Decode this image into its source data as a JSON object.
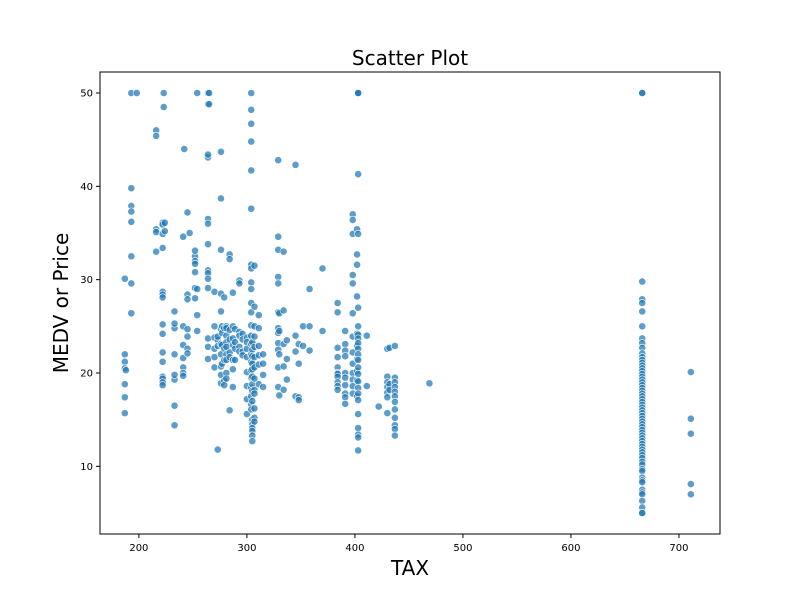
{
  "chart_data": {
    "type": "scatter",
    "title": "Scatter Plot",
    "xlabel": "TAX",
    "ylabel": "MEDV or Price",
    "xlim": [
      164,
      738
    ],
    "ylim": [
      2.75,
      52.25
    ],
    "x_ticks": [
      200,
      300,
      400,
      500,
      600,
      700
    ],
    "y_ticks": [
      10,
      20,
      30,
      40,
      50
    ],
    "grid": false,
    "legend": "none",
    "marker_color": "#1f77b4",
    "points": [
      [
        187,
        30.1
      ],
      [
        187,
        22.0
      ],
      [
        187,
        21.2
      ],
      [
        187,
        20.5
      ],
      [
        187,
        18.8
      ],
      [
        187,
        17.4
      ],
      [
        187,
        15.7
      ],
      [
        188,
        20.3
      ],
      [
        193,
        50.0
      ],
      [
        193,
        39.8
      ],
      [
        193,
        37.9
      ],
      [
        193,
        37.3
      ],
      [
        193,
        36.2
      ],
      [
        193,
        32.5
      ],
      [
        193,
        29.6
      ],
      [
        193,
        26.4
      ],
      [
        198,
        50.0
      ],
      [
        216,
        46.0
      ],
      [
        216,
        45.4
      ],
      [
        216,
        35.4
      ],
      [
        216,
        35.1
      ],
      [
        216,
        33.0
      ],
      [
        222,
        36.1
      ],
      [
        222,
        35.9
      ],
      [
        222,
        34.9
      ],
      [
        222,
        33.4
      ],
      [
        222,
        28.7
      ],
      [
        222,
        28.4
      ],
      [
        222,
        28.1
      ],
      [
        222,
        25.2
      ],
      [
        222,
        24.2
      ],
      [
        222,
        22.2
      ],
      [
        222,
        21.2
      ],
      [
        222,
        19.6
      ],
      [
        222,
        19.4
      ],
      [
        222,
        19.0
      ],
      [
        222,
        18.7
      ],
      [
        223,
        50.0
      ],
      [
        223,
        48.5
      ],
      [
        224,
        36.1
      ],
      [
        224,
        35.2
      ],
      [
        233,
        24.8
      ],
      [
        233,
        25.3
      ],
      [
        233,
        26.6
      ],
      [
        233,
        22.0
      ],
      [
        233,
        19.3
      ],
      [
        233,
        16.5
      ],
      [
        233,
        14.4
      ],
      [
        233,
        19.8
      ],
      [
        241,
        34.6
      ],
      [
        241,
        25.0
      ],
      [
        241,
        23.0
      ],
      [
        241,
        21.6
      ],
      [
        241,
        20.6
      ],
      [
        241,
        20.0
      ],
      [
        241,
        19.7
      ],
      [
        242,
        44.0
      ],
      [
        245,
        37.2
      ],
      [
        245,
        28.4
      ],
      [
        245,
        27.9
      ],
      [
        245,
        24.7
      ],
      [
        245,
        23.9
      ],
      [
        245,
        22.6
      ],
      [
        245,
        22.1
      ],
      [
        247,
        35.0
      ],
      [
        252,
        30.8
      ],
      [
        252,
        29.1
      ],
      [
        252,
        32.5
      ],
      [
        252,
        33.1
      ],
      [
        252,
        32.0
      ],
      [
        252,
        31.7
      ],
      [
        252,
        28.0
      ],
      [
        254,
        50.0
      ],
      [
        254,
        29.0
      ],
      [
        254,
        26.2
      ],
      [
        254,
        24.5
      ],
      [
        264,
        50.0
      ],
      [
        264,
        48.8
      ],
      [
        264,
        43.1
      ],
      [
        264,
        43.4
      ],
      [
        264,
        36.5
      ],
      [
        264,
        36.0
      ],
      [
        264,
        33.8
      ],
      [
        264,
        31.0
      ],
      [
        264,
        30.7
      ],
      [
        264,
        30.1
      ],
      [
        264,
        29.1
      ],
      [
        264,
        23.7
      ],
      [
        264,
        22.8
      ],
      [
        264,
        21.5
      ],
      [
        265,
        50.0
      ],
      [
        265,
        48.8
      ],
      [
        270,
        28.7
      ],
      [
        270,
        25.0
      ],
      [
        270,
        23.8
      ],
      [
        270,
        22.6
      ],
      [
        270,
        21.7
      ],
      [
        270,
        20.6
      ],
      [
        273,
        11.8
      ],
      [
        273,
        23.5
      ],
      [
        273,
        22.9
      ],
      [
        273,
        23.9
      ],
      [
        276,
        43.7
      ],
      [
        276,
        38.7
      ],
      [
        276,
        33.2
      ],
      [
        276,
        28.5
      ],
      [
        276,
        26.6
      ],
      [
        276,
        24.7
      ],
      [
        276,
        23.1
      ],
      [
        276,
        22.0
      ],
      [
        276,
        20.7
      ],
      [
        276,
        19.8
      ],
      [
        276,
        18.9
      ],
      [
        277,
        25.0
      ],
      [
        277,
        24.3
      ],
      [
        277,
        23.0
      ],
      [
        277,
        21.0
      ],
      [
        279,
        28.1
      ],
      [
        279,
        24.8
      ],
      [
        279,
        22.6
      ],
      [
        279,
        21.4
      ],
      [
        279,
        19.2
      ],
      [
        279,
        18.7
      ],
      [
        281,
        25.0
      ],
      [
        281,
        24.8
      ],
      [
        281,
        24.0
      ],
      [
        281,
        23.3
      ],
      [
        281,
        22.8
      ],
      [
        281,
        22.0
      ],
      [
        281,
        21.4
      ],
      [
        281,
        20.0
      ],
      [
        281,
        19.4
      ],
      [
        284,
        32.7
      ],
      [
        284,
        32.2
      ],
      [
        284,
        24.6
      ],
      [
        284,
        23.6
      ],
      [
        284,
        22.2
      ],
      [
        284,
        21.7
      ],
      [
        284,
        16.0
      ],
      [
        287,
        28.6
      ],
      [
        287,
        25.0
      ],
      [
        287,
        23.7
      ],
      [
        287,
        23.0
      ],
      [
        287,
        21.4
      ],
      [
        287,
        20.4
      ],
      [
        287,
        18.5
      ],
      [
        289,
        24.7
      ],
      [
        289,
        23.3
      ],
      [
        289,
        22.6
      ],
      [
        289,
        21.4
      ],
      [
        293,
        29.9
      ],
      [
        293,
        29.6
      ],
      [
        293,
        24.4
      ],
      [
        293,
        24.0
      ],
      [
        293,
        22.8
      ],
      [
        293,
        22.3
      ],
      [
        296,
        24.2
      ],
      [
        296,
        23.6
      ],
      [
        296,
        22.3
      ],
      [
        296,
        21.9
      ],
      [
        300,
        23.8
      ],
      [
        300,
        23.3
      ],
      [
        300,
        22.6
      ],
      [
        300,
        21.7
      ],
      [
        300,
        20.1
      ],
      [
        300,
        18.6
      ],
      [
        300,
        17.2
      ],
      [
        300,
        15.6
      ],
      [
        304,
        50.0
      ],
      [
        304,
        48.2
      ],
      [
        304,
        46.7
      ],
      [
        304,
        44.8
      ],
      [
        304,
        41.7
      ],
      [
        304,
        37.6
      ],
      [
        304,
        31.6
      ],
      [
        304,
        31.2
      ],
      [
        304,
        29.7
      ],
      [
        304,
        29.0
      ],
      [
        304,
        27.5
      ],
      [
        304,
        26.5
      ],
      [
        304,
        25.1
      ],
      [
        304,
        24.0
      ],
      [
        304,
        23.1
      ],
      [
        304,
        22.0
      ],
      [
        304,
        21.2
      ],
      [
        304,
        20.3
      ],
      [
        304,
        19.5
      ],
      [
        304,
        18.4
      ],
      [
        304,
        17.5
      ],
      [
        304,
        16.6
      ],
      [
        304,
        16.1
      ],
      [
        305,
        23.3
      ],
      [
        305,
        22.5
      ],
      [
        305,
        21.8
      ],
      [
        305,
        21.0
      ],
      [
        305,
        20.4
      ],
      [
        305,
        19.6
      ],
      [
        305,
        18.8
      ],
      [
        305,
        18.1
      ],
      [
        305,
        17.0
      ],
      [
        305,
        15.0
      ],
      [
        305,
        14.5
      ],
      [
        305,
        14.1
      ],
      [
        305,
        13.8
      ],
      [
        305,
        13.3
      ],
      [
        305,
        12.7
      ],
      [
        307,
        31.5
      ],
      [
        307,
        27.1
      ],
      [
        307,
        25.0
      ],
      [
        307,
        23.9
      ],
      [
        307,
        22.8
      ],
      [
        307,
        21.7
      ],
      [
        307,
        20.6
      ],
      [
        307,
        19.4
      ],
      [
        307,
        18.2
      ],
      [
        307,
        17.8
      ],
      [
        307,
        16.2
      ],
      [
        307,
        15.2
      ],
      [
        307,
        14.8
      ],
      [
        311,
        26.2
      ],
      [
        311,
        24.8
      ],
      [
        311,
        22.9
      ],
      [
        311,
        21.9
      ],
      [
        311,
        20.9
      ],
      [
        311,
        18.8
      ],
      [
        315,
        22.0
      ],
      [
        315,
        21.0
      ],
      [
        315,
        19.8
      ],
      [
        315,
        18.5
      ],
      [
        329,
        42.8
      ],
      [
        329,
        34.6
      ],
      [
        329,
        33.2
      ],
      [
        329,
        30.3
      ],
      [
        329,
        29.6
      ],
      [
        329,
        26.5
      ],
      [
        329,
        24.8
      ],
      [
        329,
        24.3
      ],
      [
        329,
        23.2
      ],
      [
        329,
        22.5
      ],
      [
        329,
        20.6
      ],
      [
        329,
        18.5
      ],
      [
        330,
        26.4
      ],
      [
        330,
        24.5
      ],
      [
        330,
        22.0
      ],
      [
        330,
        17.6
      ],
      [
        334,
        33.0
      ],
      [
        334,
        26.7
      ],
      [
        334,
        23.1
      ],
      [
        334,
        20.7
      ],
      [
        334,
        18.2
      ],
      [
        337,
        23.5
      ],
      [
        337,
        21.5
      ],
      [
        337,
        19.3
      ],
      [
        345,
        42.3
      ],
      [
        345,
        24.0
      ],
      [
        345,
        22.3
      ],
      [
        345,
        17.5
      ],
      [
        348,
        23.1
      ],
      [
        348,
        21.0
      ],
      [
        348,
        17.4
      ],
      [
        348,
        17.1
      ],
      [
        352,
        25.0
      ],
      [
        352,
        22.9
      ],
      [
        358,
        29.0
      ],
      [
        358,
        25.0
      ],
      [
        358,
        22.4
      ],
      [
        370,
        31.2
      ],
      [
        370,
        24.5
      ],
      [
        384,
        27.5
      ],
      [
        384,
        26.5
      ],
      [
        384,
        22.7
      ],
      [
        384,
        21.7
      ],
      [
        384,
        20.6
      ],
      [
        384,
        20.0
      ],
      [
        384,
        19.9
      ],
      [
        384,
        19.6
      ],
      [
        384,
        19.0
      ],
      [
        384,
        18.6
      ],
      [
        384,
        18.2
      ],
      [
        391,
        24.5
      ],
      [
        391,
        23.1
      ],
      [
        391,
        22.4
      ],
      [
        391,
        21.8
      ],
      [
        391,
        20.0
      ],
      [
        391,
        19.5
      ],
      [
        391,
        18.7
      ],
      [
        391,
        17.8
      ],
      [
        391,
        17.4
      ],
      [
        391,
        16.7
      ],
      [
        398,
        37.0
      ],
      [
        398,
        36.4
      ],
      [
        398,
        34.9
      ],
      [
        398,
        30.5
      ],
      [
        398,
        29.6
      ],
      [
        398,
        26.4
      ],
      [
        398,
        23.9
      ],
      [
        398,
        22.2
      ],
      [
        398,
        21.0
      ],
      [
        398,
        20.0
      ],
      [
        398,
        19.3
      ],
      [
        398,
        18.6
      ],
      [
        398,
        17.8
      ],
      [
        402,
        35.4
      ],
      [
        402,
        32.7
      ],
      [
        402,
        31.6
      ],
      [
        402,
        28.2
      ],
      [
        402,
        24.2
      ],
      [
        402,
        22.9
      ],
      [
        402,
        21.5
      ],
      [
        402,
        20.2
      ],
      [
        402,
        19.2
      ],
      [
        402,
        17.5
      ],
      [
        403,
        50.0
      ],
      [
        403,
        50.0
      ],
      [
        403,
        50.0
      ],
      [
        403,
        41.3
      ],
      [
        403,
        34.9
      ],
      [
        403,
        27.0
      ],
      [
        403,
        25.0
      ],
      [
        403,
        24.1
      ],
      [
        403,
        23.7
      ],
      [
        403,
        23.2
      ],
      [
        403,
        22.6
      ],
      [
        403,
        22.0
      ],
      [
        403,
        21.4
      ],
      [
        403,
        20.6
      ],
      [
        403,
        19.9
      ],
      [
        403,
        19.1
      ],
      [
        403,
        18.4
      ],
      [
        403,
        17.8
      ],
      [
        403,
        17.1
      ],
      [
        403,
        15.6
      ],
      [
        403,
        14.1
      ],
      [
        403,
        13.4
      ],
      [
        403,
        13.1
      ],
      [
        403,
        11.7
      ],
      [
        411,
        24.0
      ],
      [
        411,
        18.6
      ],
      [
        422,
        16.4
      ],
      [
        430,
        22.6
      ],
      [
        430,
        19.6
      ],
      [
        430,
        19.0
      ],
      [
        430,
        18.5
      ],
      [
        430,
        17.9
      ],
      [
        430,
        17.4
      ],
      [
        430,
        15.7
      ],
      [
        432,
        22.7
      ],
      [
        432,
        18.8
      ],
      [
        432,
        18.2
      ],
      [
        437,
        22.9
      ],
      [
        437,
        19.5
      ],
      [
        437,
        19.0
      ],
      [
        437,
        18.5
      ],
      [
        437,
        18.0
      ],
      [
        437,
        17.5
      ],
      [
        437,
        16.9
      ],
      [
        437,
        16.1
      ],
      [
        437,
        15.2
      ],
      [
        437,
        14.4
      ],
      [
        437,
        14.0
      ],
      [
        437,
        13.3
      ],
      [
        469,
        18.9
      ],
      [
        666,
        50.0
      ],
      [
        666,
        50.0
      ],
      [
        666,
        29.8
      ],
      [
        666,
        27.9
      ],
      [
        666,
        27.5
      ],
      [
        666,
        26.6
      ],
      [
        666,
        25.0
      ],
      [
        666,
        23.7
      ],
      [
        666,
        23.2
      ],
      [
        666,
        22.7
      ],
      [
        666,
        22.1
      ],
      [
        666,
        21.7
      ],
      [
        666,
        21.4
      ],
      [
        666,
        21.1
      ],
      [
        666,
        20.8
      ],
      [
        666,
        20.5
      ],
      [
        666,
        20.2
      ],
      [
        666,
        19.9
      ],
      [
        666,
        19.6
      ],
      [
        666,
        19.3
      ],
      [
        666,
        19.0
      ],
      [
        666,
        18.7
      ],
      [
        666,
        18.4
      ],
      [
        666,
        18.1
      ],
      [
        666,
        17.8
      ],
      [
        666,
        17.5
      ],
      [
        666,
        17.2
      ],
      [
        666,
        16.9
      ],
      [
        666,
        16.6
      ],
      [
        666,
        16.3
      ],
      [
        666,
        16.0
      ],
      [
        666,
        15.7
      ],
      [
        666,
        15.4
      ],
      [
        666,
        15.1
      ],
      [
        666,
        14.8
      ],
      [
        666,
        14.5
      ],
      [
        666,
        14.2
      ],
      [
        666,
        13.9
      ],
      [
        666,
        13.6
      ],
      [
        666,
        13.3
      ],
      [
        666,
        13.0
      ],
      [
        666,
        12.7
      ],
      [
        666,
        12.4
      ],
      [
        666,
        12.1
      ],
      [
        666,
        11.8
      ],
      [
        666,
        11.5
      ],
      [
        666,
        11.2
      ],
      [
        666,
        10.9
      ],
      [
        666,
        10.5
      ],
      [
        666,
        10.2
      ],
      [
        666,
        9.7
      ],
      [
        666,
        9.5
      ],
      [
        666,
        8.8
      ],
      [
        666,
        8.5
      ],
      [
        666,
        8.3
      ],
      [
        666,
        7.5
      ],
      [
        666,
        7.2
      ],
      [
        666,
        7.0
      ],
      [
        666,
        6.3
      ],
      [
        666,
        5.6
      ],
      [
        666,
        5.0
      ],
      [
        666,
        5.0
      ],
      [
        711,
        20.1
      ],
      [
        711,
        15.1
      ],
      [
        711,
        13.5
      ],
      [
        711,
        8.1
      ],
      [
        711,
        7.0
      ]
    ]
  }
}
